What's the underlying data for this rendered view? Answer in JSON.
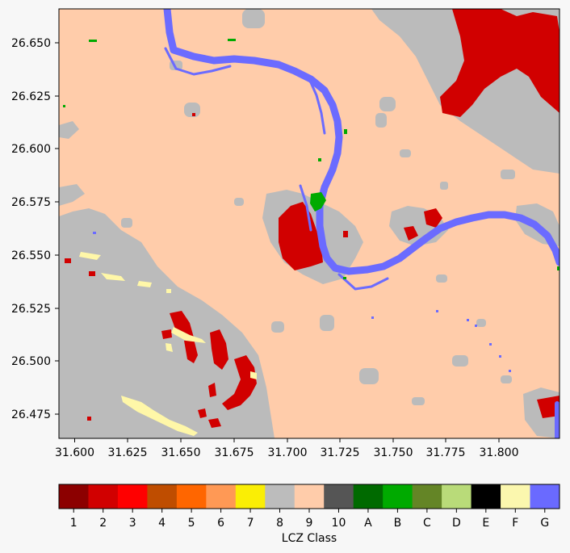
{
  "map": {
    "x_ticks": [
      "31.600",
      "31.625",
      "31.650",
      "31.675",
      "31.700",
      "31.725",
      "31.750",
      "31.775",
      "31.800"
    ],
    "y_ticks": [
      "26.650",
      "26.625",
      "26.600",
      "26.575",
      "26.550",
      "26.525",
      "26.500",
      "26.475"
    ],
    "colors": {
      "background_class_9": "#ffccaa",
      "class_8": "#bbbbbb",
      "class_2": "#d10000",
      "class_G": "#6b6bff",
      "class_B": "#00aa00",
      "class_F": "#fff7a8"
    }
  },
  "colorbar": {
    "label": "LCZ Class",
    "classes": [
      {
        "label": "1",
        "color": "#8c0000"
      },
      {
        "label": "2",
        "color": "#d10000"
      },
      {
        "label": "3",
        "color": "#ff0000"
      },
      {
        "label": "4",
        "color": "#bf4d00"
      },
      {
        "label": "5",
        "color": "#ff6600"
      },
      {
        "label": "6",
        "color": "#ff9955"
      },
      {
        "label": "7",
        "color": "#faee05"
      },
      {
        "label": "8",
        "color": "#bcbcbc"
      },
      {
        "label": "9",
        "color": "#ffccaa"
      },
      {
        "label": "10",
        "color": "#555555"
      },
      {
        "label": "A",
        "color": "#006a00"
      },
      {
        "label": "B",
        "color": "#00aa00"
      },
      {
        "label": "C",
        "color": "#648526"
      },
      {
        "label": "D",
        "color": "#b9db79"
      },
      {
        "label": "E",
        "color": "#000000"
      },
      {
        "label": "F",
        "color": "#fbf7ae"
      },
      {
        "label": "G",
        "color": "#6a6aff"
      }
    ]
  }
}
